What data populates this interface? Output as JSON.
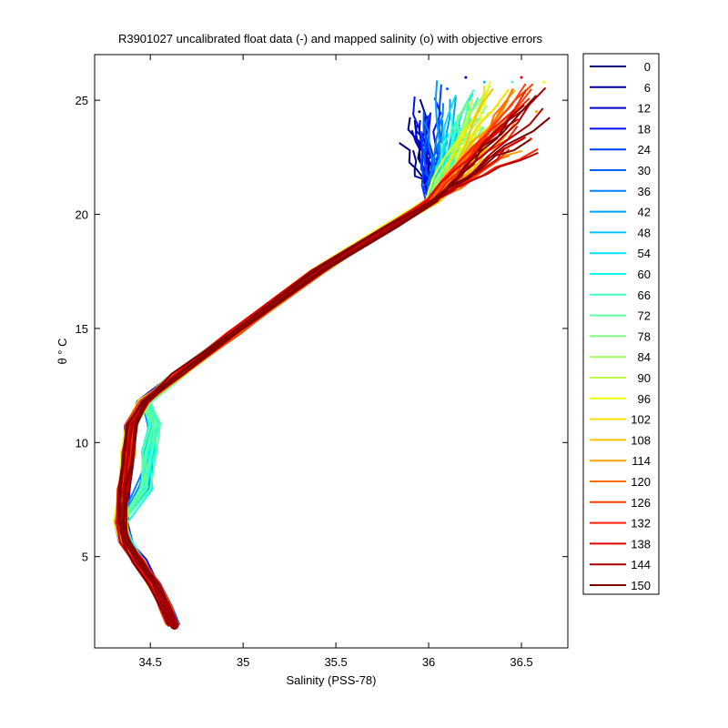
{
  "chart_data": {
    "type": "line",
    "title": "R3901027 uncalibrated float data (-) and mapped salinity (o) with objective errors",
    "xlabel": "Salinity (PSS-78)",
    "ylabel": "θ ° C",
    "xlim": [
      34.2,
      36.75
    ],
    "ylim": [
      1.0,
      27.0
    ],
    "xticks": [
      34.5,
      35,
      35.5,
      36,
      36.5
    ],
    "xtick_labels": [
      "34.5",
      "35",
      "35.5",
      "36",
      "36.5"
    ],
    "yticks": [
      5,
      10,
      15,
      20,
      25
    ],
    "ytick_labels": [
      "5",
      "10",
      "15",
      "20",
      "25"
    ],
    "grid": false,
    "legend_position": "outside-right",
    "legend_entries": [
      "0",
      "6",
      "12",
      "18",
      "24",
      "30",
      "36",
      "42",
      "48",
      "54",
      "60",
      "66",
      "72",
      "78",
      "84",
      "90",
      "96",
      "102",
      "108",
      "114",
      "120",
      "126",
      "132",
      "138",
      "144",
      "150"
    ],
    "legend_colors": [
      "#000080",
      "#00009f",
      "#0000c8",
      "#0010ff",
      "#0040ff",
      "#0060ff",
      "#0080ff",
      "#00a0ff",
      "#00c0ff",
      "#00e0ff",
      "#10ffef",
      "#40ffbf",
      "#60ff9f",
      "#80ff80",
      "#a0ff60",
      "#c0ff40",
      "#efff10",
      "#ffe000",
      "#ffc000",
      "#ffa000",
      "#ff7000",
      "#ff4000",
      "#ff2000",
      "#e00000",
      "#b00000",
      "#800000"
    ],
    "base_profile": [
      {
        "s": 34.62,
        "t": 2.0
      },
      {
        "s": 34.58,
        "t": 2.8
      },
      {
        "s": 34.52,
        "t": 3.8
      },
      {
        "s": 34.44,
        "t": 4.8
      },
      {
        "s": 34.37,
        "t": 5.6
      },
      {
        "s": 34.34,
        "t": 6.5
      },
      {
        "s": 34.36,
        "t": 8.0
      },
      {
        "s": 34.38,
        "t": 9.5
      },
      {
        "s": 34.4,
        "t": 10.8
      },
      {
        "s": 34.47,
        "t": 11.8
      },
      {
        "s": 34.65,
        "t": 13.0
      },
      {
        "s": 34.95,
        "t": 14.8
      },
      {
        "s": 35.4,
        "t": 17.5
      },
      {
        "s": 35.8,
        "t": 19.5
      },
      {
        "s": 36.02,
        "t": 20.6
      }
    ],
    "surface_ends": [
      {
        "s": 35.95,
        "t": 24.5,
        "group": 0
      },
      {
        "s": 36.2,
        "t": 26.0,
        "group": 2
      },
      {
        "s": 36.1,
        "t": 25.5,
        "group": 5
      },
      {
        "s": 36.3,
        "t": 25.8,
        "group": 8
      },
      {
        "s": 36.45,
        "t": 25.8,
        "group": 11
      },
      {
        "s": 36.62,
        "t": 25.8,
        "group": 16
      },
      {
        "s": 36.58,
        "t": 24.5,
        "group": 19
      },
      {
        "s": 36.55,
        "t": 23.3,
        "group": 22
      },
      {
        "s": 36.5,
        "t": 26.0,
        "group": 23
      },
      {
        "s": 36.4,
        "t": 22.8,
        "group": 25
      }
    ]
  }
}
